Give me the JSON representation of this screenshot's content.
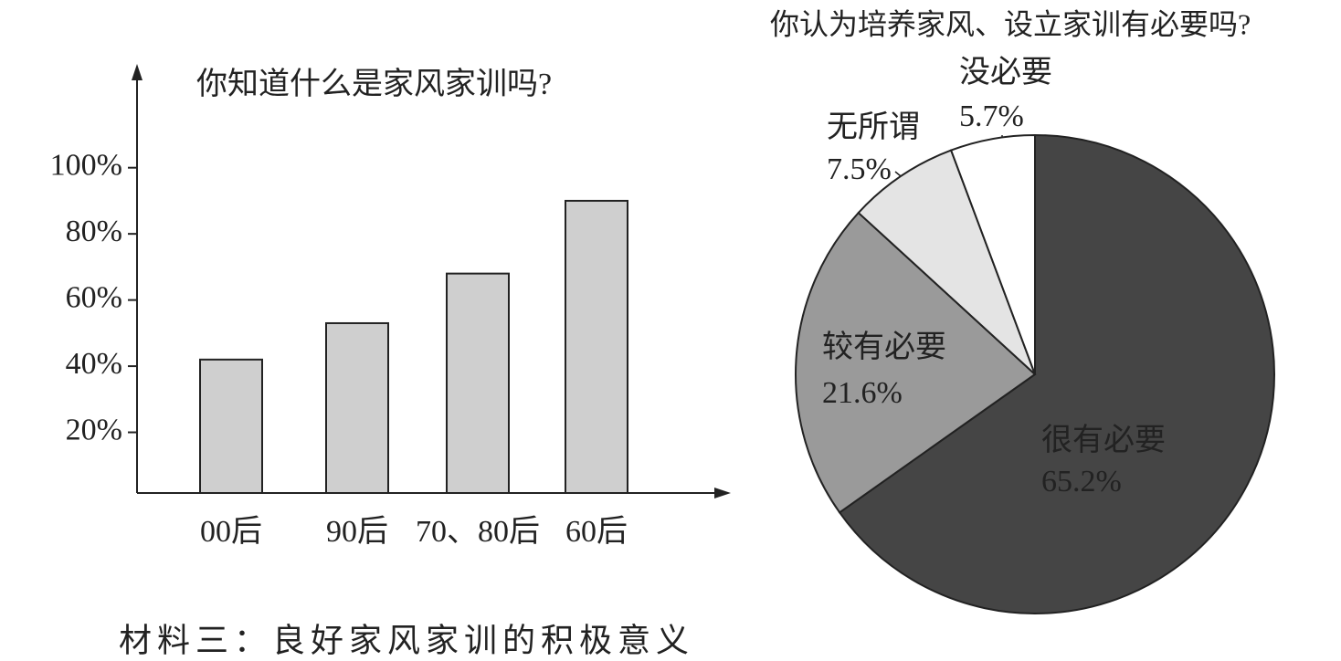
{
  "chart_data": [
    {
      "type": "bar",
      "title": "你知道什么是家风家训吗?",
      "categories": [
        "00后",
        "90后",
        "70、80后",
        "60后"
      ],
      "values": [
        42,
        53,
        68,
        90
      ],
      "color": "#cfcfcf",
      "ylim": [
        0,
        130
      ],
      "yticks": [
        {
          "value": 20,
          "label": "20%"
        },
        {
          "value": 40,
          "label": "40%"
        },
        {
          "value": 60,
          "label": "60%"
        },
        {
          "value": 80,
          "label": "80%"
        },
        {
          "value": 100,
          "label": "100%"
        }
      ]
    },
    {
      "type": "pie",
      "title": "你认为培养家风、设立家训有必要吗?",
      "categories": [
        "很有必要",
        "较有必要",
        "无所谓",
        "没必要"
      ],
      "values": [
        65.2,
        21.6,
        7.5,
        5.7
      ],
      "value_labels": [
        "65.2%",
        "21.6%",
        "7.5%",
        "5.7%"
      ],
      "colors": [
        "#454545",
        "#9a9a9a",
        "#e4e4e4",
        "#ffffff"
      ]
    }
  ],
  "caption": "材料三：良好家风家训的积极意义"
}
